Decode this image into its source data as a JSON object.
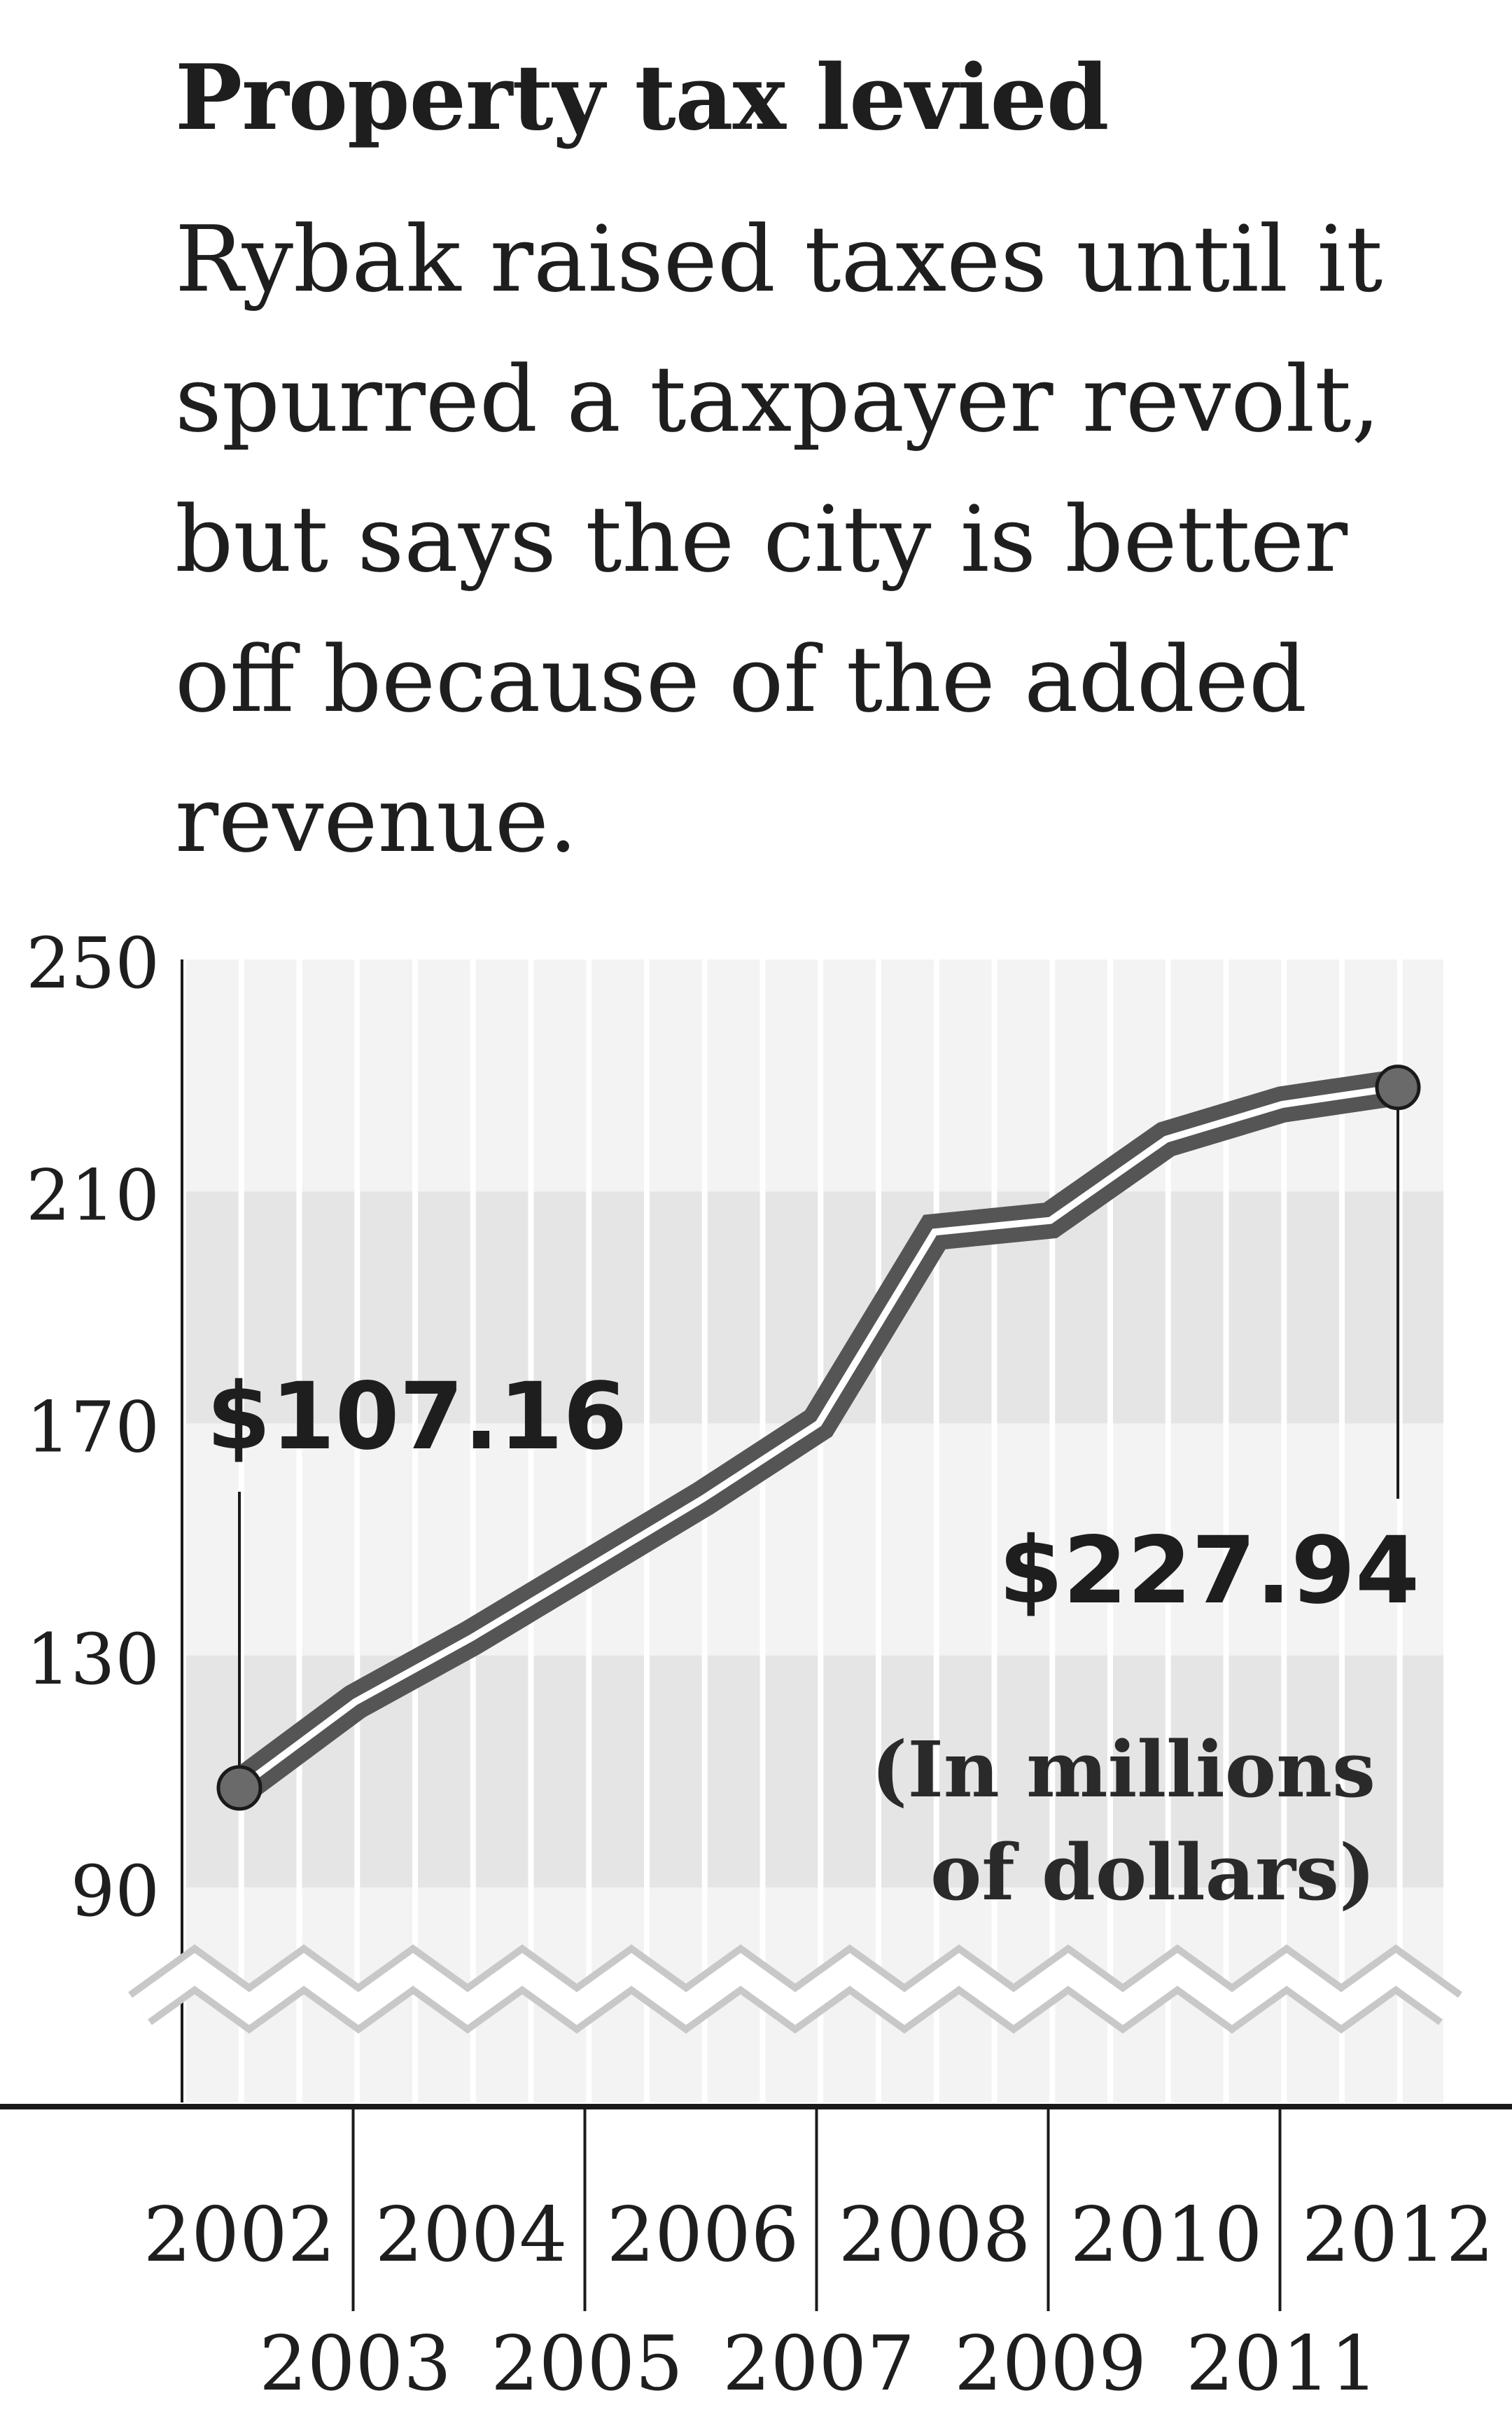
{
  "title": "Property tax levied",
  "subtitle": "Rybak raised taxes until it spurred a taxpayer revolt, but says the city is better off because of the added revenue.",
  "colors": {
    "line": "#555555",
    "line_highlight": "#ffffff",
    "band_dark": "#e5e5e5",
    "band_light": "#f3f3f3",
    "axis": "#1a1a1a",
    "text": "#1e1e1e"
  },
  "chart_data": {
    "type": "line",
    "x": [
      2002,
      2003,
      2004,
      2005,
      2006,
      2007,
      2008,
      2009,
      2010,
      2011,
      2012
    ],
    "series": [
      {
        "values": [
          107.16,
          122,
          133,
          145,
          157,
          170,
          203,
          205,
          219,
          225,
          227.94
        ]
      }
    ],
    "ylim": [
      90,
      250
    ],
    "y_ticks": [
      "250",
      "210",
      "170",
      "130",
      "90"
    ],
    "y_tick_values": [
      250,
      210,
      170,
      130,
      90
    ],
    "x_ticks_top": [
      "2002",
      "2004",
      "2006",
      "2008",
      "2010",
      "2012"
    ],
    "x_ticks_bottom": [
      "2003",
      "2005",
      "2007",
      "2009",
      "2011"
    ],
    "y_axis_break": true,
    "grid": true,
    "annotations": {
      "start_label": "$107.16",
      "end_label": "$227.94",
      "units_line1": "(In millions",
      "units_line2": "of dollars)"
    }
  }
}
